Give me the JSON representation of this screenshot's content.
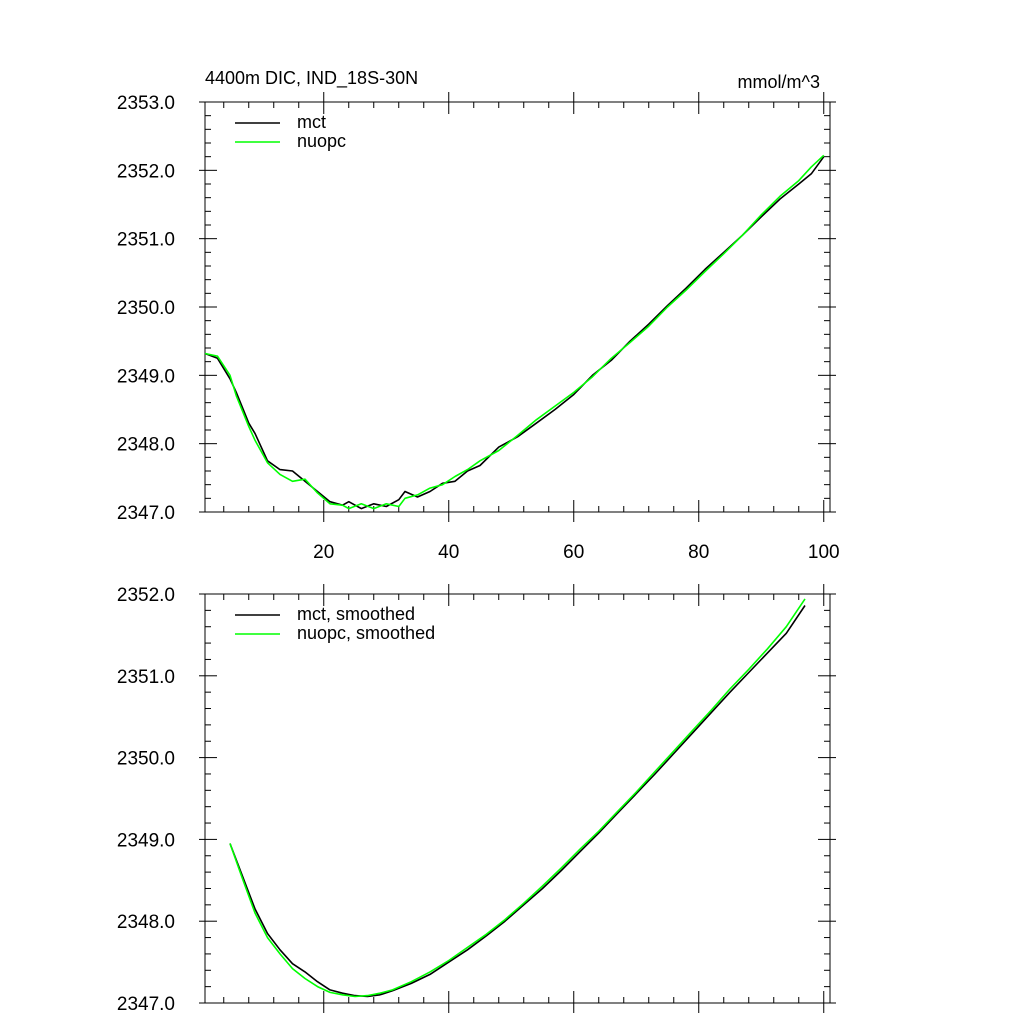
{
  "chart_data": [
    {
      "type": "line",
      "title_left": "4400m DIC, IND_18S-30N",
      "title_right": "mmol/m^3",
      "xlim": [
        1,
        101
      ],
      "ylim": [
        2347.0,
        2353.0
      ],
      "xticks": [
        20,
        40,
        60,
        80,
        100
      ],
      "xtick_labels": [
        "20",
        "40",
        "60",
        "80",
        "100"
      ],
      "yticks": [
        2347.0,
        2348.0,
        2349.0,
        2350.0,
        2351.0,
        2352.0,
        2353.0
      ],
      "ytick_labels": [
        "2347.0",
        "2348.0",
        "2349.0",
        "2350.0",
        "2351.0",
        "2352.0",
        "2353.0"
      ],
      "legend_position": "top-left",
      "series": [
        {
          "name": "mct",
          "color": "#000000",
          "x": [
            1,
            3,
            5,
            6,
            8,
            9,
            11,
            13,
            15,
            17,
            19,
            21,
            23,
            24,
            26,
            28,
            30,
            32,
            33,
            35,
            37,
            39,
            41,
            43,
            45,
            48,
            51,
            54,
            57,
            60,
            63,
            66,
            69,
            72,
            75,
            78,
            81,
            84,
            87,
            90,
            93,
            96,
            98,
            100
          ],
          "values": [
            2349.32,
            2349.25,
            2348.95,
            2348.75,
            2348.3,
            2348.15,
            2347.75,
            2347.62,
            2347.6,
            2347.45,
            2347.3,
            2347.15,
            2347.1,
            2347.15,
            2347.05,
            2347.12,
            2347.08,
            2347.18,
            2347.3,
            2347.22,
            2347.3,
            2347.42,
            2347.45,
            2347.6,
            2347.68,
            2347.95,
            2348.1,
            2348.3,
            2348.5,
            2348.72,
            2349.0,
            2349.22,
            2349.5,
            2349.75,
            2350.02,
            2350.28,
            2350.55,
            2350.8,
            2351.05,
            2351.32,
            2351.58,
            2351.8,
            2351.95,
            2352.2
          ]
        },
        {
          "name": "nuopc",
          "color": "#00ff00",
          "x": [
            1,
            3,
            5,
            6,
            8,
            9,
            11,
            13,
            15,
            17,
            19,
            21,
            23,
            24,
            26,
            28,
            30,
            32,
            33,
            35,
            37,
            39,
            41,
            43,
            45,
            48,
            51,
            54,
            57,
            60,
            63,
            66,
            69,
            72,
            75,
            78,
            81,
            84,
            87,
            90,
            93,
            96,
            98,
            100
          ],
          "values": [
            2349.32,
            2349.28,
            2349.0,
            2348.7,
            2348.25,
            2348.05,
            2347.72,
            2347.55,
            2347.45,
            2347.48,
            2347.28,
            2347.12,
            2347.1,
            2347.05,
            2347.12,
            2347.05,
            2347.12,
            2347.08,
            2347.2,
            2347.25,
            2347.35,
            2347.4,
            2347.52,
            2347.62,
            2347.75,
            2347.9,
            2348.12,
            2348.35,
            2348.55,
            2348.75,
            2348.98,
            2349.25,
            2349.48,
            2349.72,
            2350.0,
            2350.25,
            2350.52,
            2350.78,
            2351.05,
            2351.35,
            2351.62,
            2351.85,
            2352.05,
            2352.22
          ]
        }
      ]
    },
    {
      "type": "line",
      "xlim": [
        1,
        101
      ],
      "ylim": [
        2347.0,
        2352.0
      ],
      "xticks": [
        20,
        40,
        60,
        80,
        100
      ],
      "yticks": [
        2347.0,
        2348.0,
        2349.0,
        2350.0,
        2351.0,
        2352.0
      ],
      "ytick_labels": [
        "2347.0",
        "2348.0",
        "2349.0",
        "2350.0",
        "2351.0",
        "2352.0"
      ],
      "legend_position": "top-left",
      "series": [
        {
          "name": "mct, smoothed",
          "color": "#000000",
          "x": [
            5,
            7,
            9,
            11,
            13,
            15,
            17,
            19,
            21,
            23,
            25,
            27,
            29,
            31,
            34,
            37,
            40,
            43,
            46,
            49,
            52,
            55,
            58,
            61,
            64,
            67,
            70,
            73,
            76,
            79,
            82,
            85,
            88,
            91,
            94,
            97
          ],
          "values": [
            2348.95,
            2348.55,
            2348.15,
            2347.85,
            2347.65,
            2347.48,
            2347.38,
            2347.26,
            2347.16,
            2347.12,
            2347.09,
            2347.08,
            2347.1,
            2347.15,
            2347.24,
            2347.35,
            2347.5,
            2347.65,
            2347.82,
            2348.0,
            2348.2,
            2348.4,
            2348.62,
            2348.85,
            2349.08,
            2349.32,
            2349.56,
            2349.8,
            2350.05,
            2350.3,
            2350.55,
            2350.8,
            2351.04,
            2351.28,
            2351.52,
            2351.86
          ]
        },
        {
          "name": "nuopc, smoothed",
          "color": "#00ff00",
          "x": [
            5,
            7,
            9,
            11,
            13,
            15,
            17,
            19,
            21,
            23,
            25,
            27,
            29,
            31,
            34,
            37,
            40,
            43,
            46,
            49,
            52,
            55,
            58,
            61,
            64,
            67,
            70,
            73,
            76,
            79,
            82,
            85,
            88,
            91,
            94,
            97
          ],
          "values": [
            2348.95,
            2348.52,
            2348.1,
            2347.8,
            2347.6,
            2347.42,
            2347.3,
            2347.2,
            2347.13,
            2347.1,
            2347.08,
            2347.09,
            2347.12,
            2347.16,
            2347.26,
            2347.38,
            2347.52,
            2347.68,
            2347.84,
            2348.02,
            2348.22,
            2348.43,
            2348.65,
            2348.88,
            2349.1,
            2349.34,
            2349.58,
            2349.83,
            2350.08,
            2350.33,
            2350.58,
            2350.84,
            2351.08,
            2351.33,
            2351.6,
            2351.94
          ]
        }
      ]
    }
  ]
}
